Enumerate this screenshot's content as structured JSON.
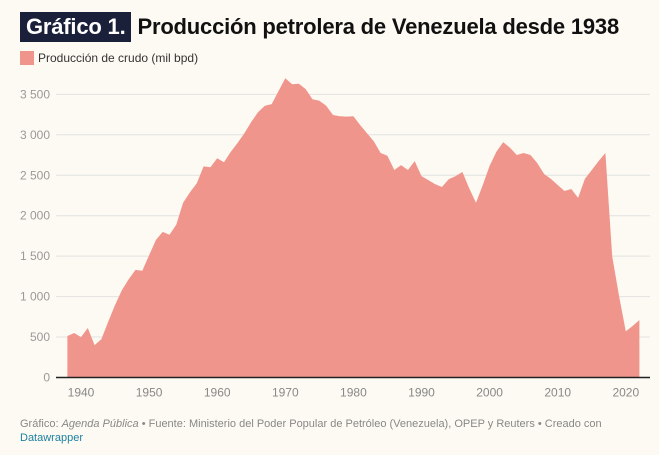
{
  "header": {
    "badge": "Gráfico 1.",
    "title": "Producción petrolera de Venezuela desde 1938"
  },
  "colors": {
    "area": "#ef958c",
    "badge_bg": "#1a1f3a",
    "grid": "#e2e2e2",
    "axis": "#222222",
    "link": "#1d81a2"
  },
  "footer": {
    "credit_label": "Gráfico: ",
    "credit_name": "Agenda Pública",
    "source_text": " • Fuente: Ministerio del Poder Popular de Petróleo (Venezuela), OPEP y Reuters • Creado con",
    "tool_link": "Datawrapper"
  },
  "chart_data": {
    "type": "area",
    "title": "Producción petrolera de Venezuela desde 1938",
    "xlabel": "",
    "ylabel": "",
    "legend": [
      {
        "name": "Producción de crudo (mil bpd)",
        "color": "#ef958c"
      }
    ],
    "legend_position": "top-left",
    "grid": true,
    "xlim": [
      1936.3,
      2023.5
    ],
    "ylim": [
      0,
      3700
    ],
    "x_ticks": [
      1940,
      1950,
      1960,
      1970,
      1980,
      1990,
      2000,
      2010,
      2020
    ],
    "y_ticks": [
      0,
      500,
      1000,
      1500,
      2000,
      2500,
      3000,
      3500
    ],
    "y_tick_labels": [
      "0",
      "500",
      "1 000",
      "1 500",
      "2 000",
      "2 500",
      "3 000",
      "3 500"
    ],
    "series": [
      {
        "name": "Producción de crudo (mil bpd)",
        "x": [
          1938,
          1939,
          1940,
          1941,
          1942,
          1943,
          1944,
          1945,
          1946,
          1947,
          1948,
          1949,
          1950,
          1951,
          1952,
          1953,
          1954,
          1955,
          1956,
          1957,
          1958,
          1959,
          1960,
          1961,
          1962,
          1963,
          1964,
          1965,
          1966,
          1967,
          1968,
          1969,
          1970,
          1971,
          1972,
          1973,
          1974,
          1975,
          1976,
          1977,
          1978,
          1979,
          1980,
          1981,
          1982,
          1983,
          1984,
          1985,
          1986,
          1987,
          1988,
          1989,
          1990,
          1991,
          1992,
          1993,
          1994,
          1995,
          1996,
          1997,
          1998,
          1999,
          2000,
          2001,
          2002,
          2003,
          2004,
          2005,
          2006,
          2007,
          2008,
          2009,
          2010,
          2011,
          2012,
          2013,
          2014,
          2015,
          2016,
          2017,
          2018,
          2019,
          2020,
          2021,
          2022
        ],
        "values": [
          513,
          550,
          500,
          612,
          400,
          475,
          690,
          895,
          1080,
          1215,
          1330,
          1320,
          1510,
          1700,
          1800,
          1765,
          1890,
          2160,
          2290,
          2400,
          2610,
          2600,
          2710,
          2660,
          2790,
          2900,
          3020,
          3160,
          3280,
          3360,
          3380,
          3540,
          3700,
          3625,
          3630,
          3565,
          3440,
          3420,
          3360,
          3245,
          3230,
          3225,
          3230,
          3120,
          3020,
          2920,
          2775,
          2740,
          2565,
          2625,
          2565,
          2675,
          2490,
          2440,
          2390,
          2355,
          2450,
          2490,
          2540,
          2340,
          2160,
          2380,
          2615,
          2790,
          2910,
          2840,
          2750,
          2775,
          2750,
          2650,
          2515,
          2455,
          2380,
          2305,
          2330,
          2220,
          2455,
          2565,
          2675,
          2775,
          1500,
          1010,
          570,
          636,
          710
        ]
      }
    ]
  }
}
